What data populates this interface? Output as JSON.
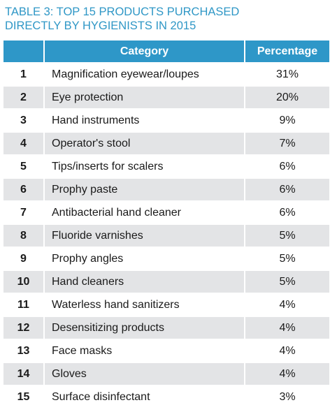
{
  "table_title": {
    "line1": "TABLE 3: TOP 15 PRODUCTS PURCHASED",
    "line2": "DIRECTLY BY HYGIENISTS IN 2015"
  },
  "headers": {
    "rank": "",
    "category": "Category",
    "percentage": "Percentage"
  },
  "rows": [
    {
      "rank": "1",
      "category": "Magnification eyewear/loupes",
      "percentage": "31%"
    },
    {
      "rank": "2",
      "category": "Eye protection",
      "percentage": "20%"
    },
    {
      "rank": "3",
      "category": "Hand instruments",
      "percentage": "9%"
    },
    {
      "rank": "4",
      "category": "Operator's stool",
      "percentage": "7%"
    },
    {
      "rank": "5",
      "category": "Tips/inserts for scalers",
      "percentage": "6%"
    },
    {
      "rank": "6",
      "category": "Prophy paste",
      "percentage": "6%"
    },
    {
      "rank": "7",
      "category": "Antibacterial hand cleaner",
      "percentage": "6%"
    },
    {
      "rank": "8",
      "category": "Fluoride varnishes",
      "percentage": "5%"
    },
    {
      "rank": "9",
      "category": "Prophy angles",
      "percentage": "5%"
    },
    {
      "rank": "10",
      "category": "Hand cleaners",
      "percentage": "5%"
    },
    {
      "rank": "11",
      "category": "Waterless hand sanitizers",
      "percentage": "4%"
    },
    {
      "rank": "12",
      "category": "Desensitizing products",
      "percentage": "4%"
    },
    {
      "rank": "13",
      "category": "Face masks",
      "percentage": "4%"
    },
    {
      "rank": "14",
      "category": "Gloves",
      "percentage": "4%"
    },
    {
      "rank": "15",
      "category": "Surface disinfectant",
      "percentage": "3%"
    }
  ],
  "colors": {
    "title": "#2f97c6",
    "header_bg": "#2e97c8",
    "header_text": "#ffffff",
    "stripe": "#e3e4e6",
    "row_bg": "#ffffff",
    "text": "#1a1a1a"
  }
}
